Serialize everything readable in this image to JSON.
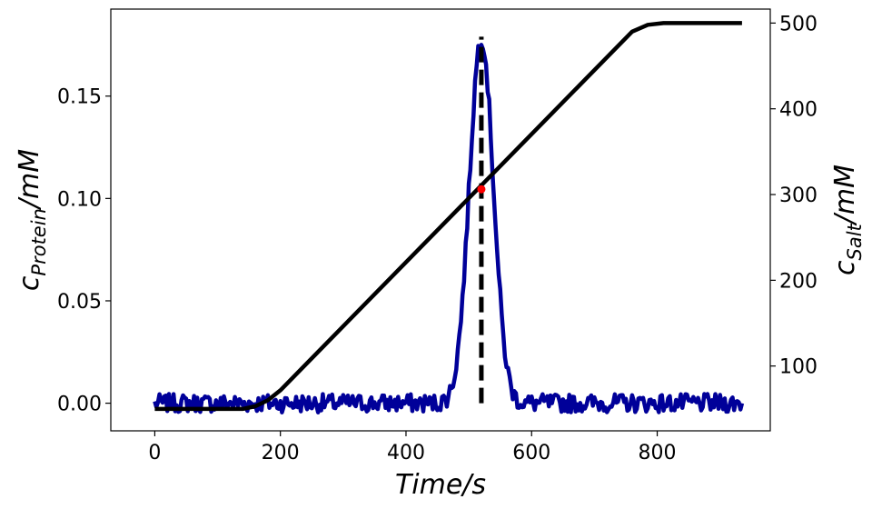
{
  "chart_data": {
    "type": "line",
    "xlabel": "Time/s",
    "ylabel_left": {
      "symbol": "c",
      "sub": "Protein",
      "unit": "/mM"
    },
    "ylabel_right": {
      "symbol": "c",
      "sub": "Salt",
      "unit": "/mM"
    },
    "xlim": [
      -70,
      980
    ],
    "ylim_left": [
      -0.0135,
      0.1925
    ],
    "ylim_right": [
      24.4,
      516.3
    ],
    "x_ticks": [
      0,
      200,
      400,
      600,
      800
    ],
    "x_tick_labels": [
      "0",
      "200",
      "400",
      "600",
      "800"
    ],
    "y_left_ticks": [
      0.0,
      0.05,
      0.1,
      0.15
    ],
    "y_left_tick_labels": [
      "0.00",
      "0.05",
      "0.10",
      "0.15"
    ],
    "y_right_ticks": [
      100,
      200,
      300,
      400,
      500
    ],
    "y_right_tick_labels": [
      "100",
      "200",
      "300",
      "400",
      "500"
    ],
    "grid": false,
    "series": [
      {
        "axis": "left",
        "color": "#000099",
        "style": "solid",
        "peak": {
          "center": 520,
          "height": 0.179,
          "sigma": 19
        },
        "noise_amplitude": 0.0045,
        "x_range": [
          0,
          935
        ]
      },
      {
        "axis": "right",
        "color": "#000000",
        "style": "solid",
        "points": [
          [
            0,
            50
          ],
          [
            80,
            50
          ],
          [
            140,
            50
          ],
          [
            160,
            53
          ],
          [
            180,
            60
          ],
          [
            200,
            71.7
          ],
          [
            760,
            490
          ],
          [
            785,
            498
          ],
          [
            810,
            500
          ],
          [
            935,
            500
          ]
        ]
      },
      {
        "axis": "left",
        "color": "#000000",
        "style": "dashed",
        "points": [
          [
            520,
            0.0
          ],
          [
            520,
            0.179
          ]
        ]
      }
    ],
    "marker": {
      "x": 520,
      "y": 0.1045,
      "axis": "left",
      "color": "#ff0000"
    }
  }
}
